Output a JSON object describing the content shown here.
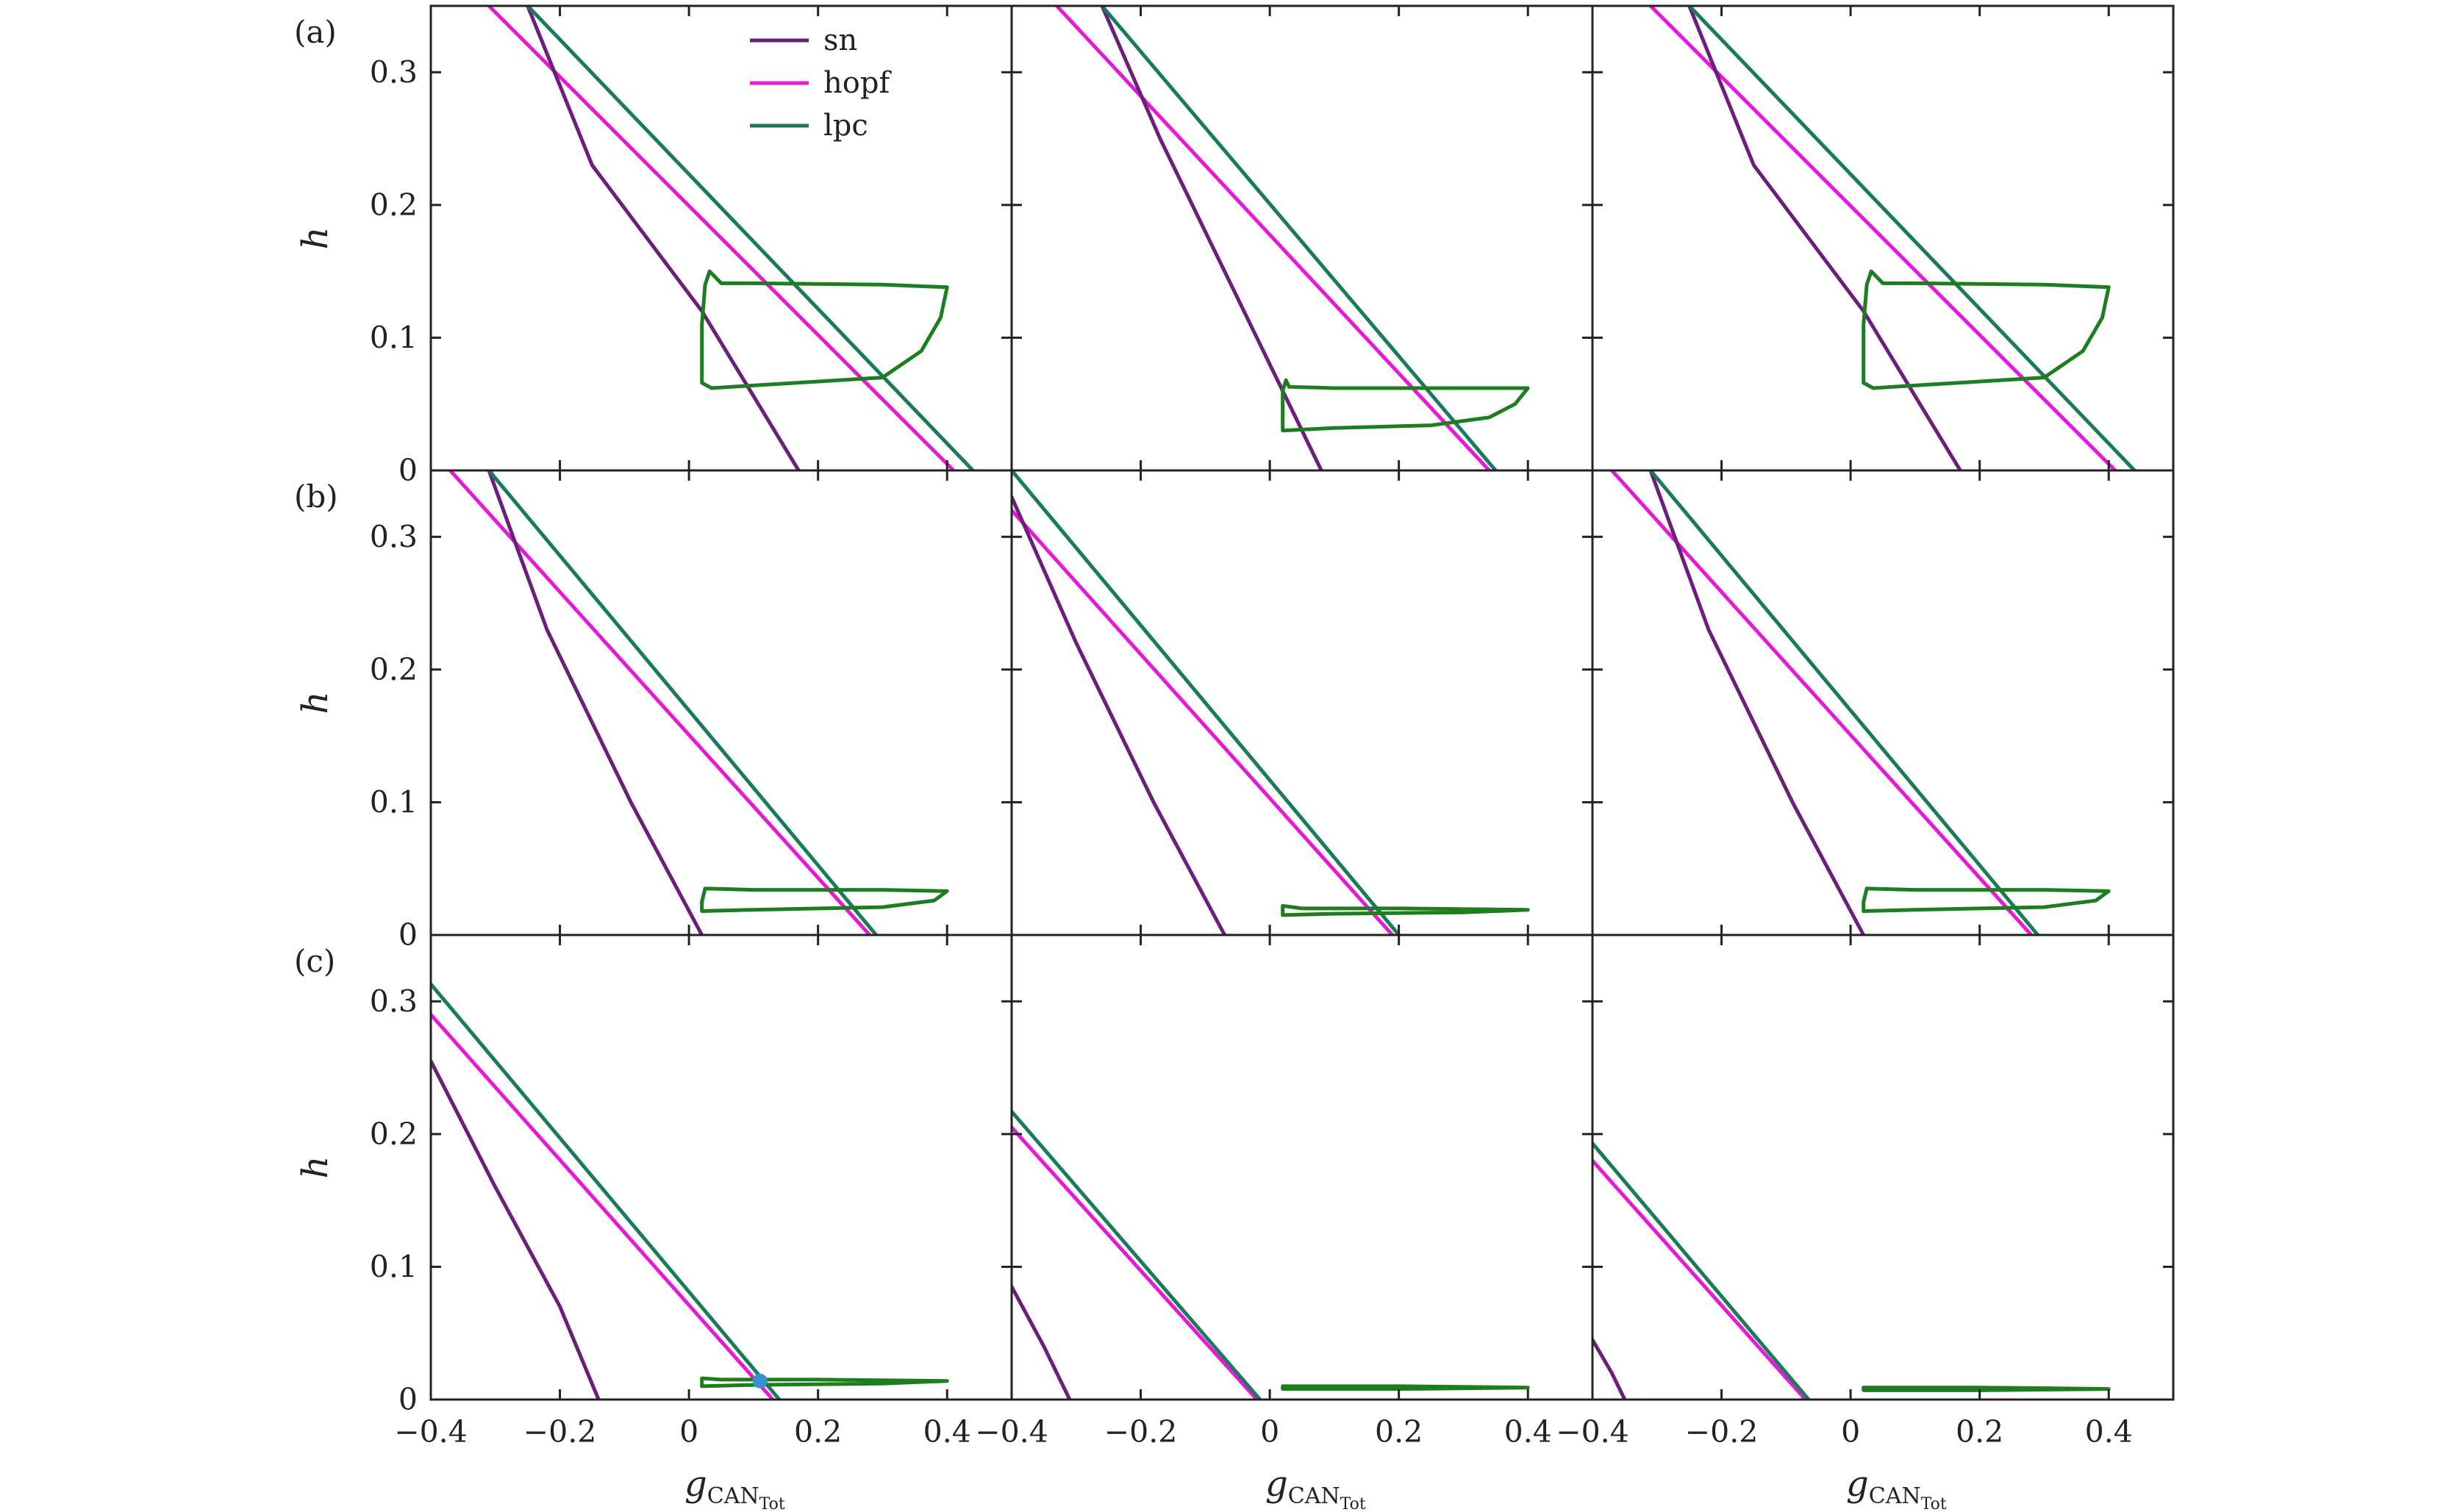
{
  "figure": {
    "row_labels": [
      "(a)",
      "(b)",
      "(c)"
    ],
    "ylabel": "h",
    "xlabel_main": "g",
    "xlabel_sub": "CAN",
    "xlabel_subsub": "Tot"
  },
  "chart_data": {
    "type": "line",
    "layout": "3x3 grid",
    "xlim": [
      -0.4,
      0.5
    ],
    "ylim": [
      0,
      0.35
    ],
    "xticks": [
      -0.4,
      -0.2,
      0,
      0.2,
      0.4
    ],
    "xtick_labels": [
      "−0.4",
      "−0.2",
      "0",
      "0.2",
      "0.4"
    ],
    "yticks": [
      0,
      0.1,
      0.2,
      0.3
    ],
    "ytick_labels": [
      "0",
      "0.1",
      "0.2",
      "0.3"
    ],
    "legend": {
      "placement": "top-left panel, upper center",
      "entries": [
        {
          "label": "sn",
          "color": "#6b1f7a"
        },
        {
          "label": "hopf",
          "color": "#e619d6"
        },
        {
          "label": "lpc",
          "color": "#1a7a5c"
        }
      ]
    },
    "colors": {
      "sn": "#6b1f7a",
      "hopf": "#e619d6",
      "lpc": "#1a7a5c",
      "cycle": "#1e7d1e",
      "dot": "#3a8fd0"
    },
    "panels": [
      {
        "row": "(a)",
        "col": 1,
        "sn": [
          [
            -0.25,
            0.35
          ],
          [
            -0.15,
            0.23
          ],
          [
            0.02,
            0.12
          ],
          [
            0.17,
            0.0
          ]
        ],
        "hopf": [
          [
            -0.31,
            0.35
          ],
          [
            0.41,
            0.0
          ]
        ],
        "lpc": [
          [
            -0.25,
            0.35
          ],
          [
            0.44,
            0.0
          ]
        ],
        "cycle": [
          [
            0.02,
            0.066
          ],
          [
            0.035,
            0.062
          ],
          [
            0.1,
            0.064
          ],
          [
            0.3,
            0.07
          ],
          [
            0.36,
            0.09
          ],
          [
            0.39,
            0.115
          ],
          [
            0.4,
            0.138
          ],
          [
            0.3,
            0.14
          ],
          [
            0.1,
            0.141
          ],
          [
            0.05,
            0.141
          ],
          [
            0.032,
            0.15
          ],
          [
            0.025,
            0.14
          ],
          [
            0.02,
            0.11
          ],
          [
            0.02,
            0.066
          ]
        ]
      },
      {
        "row": "(a)",
        "col": 2,
        "sn": [
          [
            -0.26,
            0.35
          ],
          [
            -0.17,
            0.25
          ],
          [
            -0.05,
            0.13
          ],
          [
            0.08,
            0.0
          ]
        ],
        "hopf": [
          [
            -0.33,
            0.35
          ],
          [
            0.34,
            0.0
          ]
        ],
        "lpc": [
          [
            -0.26,
            0.35
          ],
          [
            0.35,
            0.0
          ]
        ],
        "cycle": [
          [
            0.02,
            0.03
          ],
          [
            0.1,
            0.032
          ],
          [
            0.25,
            0.034
          ],
          [
            0.34,
            0.04
          ],
          [
            0.38,
            0.05
          ],
          [
            0.4,
            0.062
          ],
          [
            0.25,
            0.062
          ],
          [
            0.1,
            0.062
          ],
          [
            0.03,
            0.063
          ],
          [
            0.025,
            0.068
          ],
          [
            0.02,
            0.06
          ],
          [
            0.02,
            0.03
          ]
        ]
      },
      {
        "row": "(a)",
        "col": 3,
        "sn": [
          [
            -0.25,
            0.35
          ],
          [
            -0.15,
            0.23
          ],
          [
            0.02,
            0.12
          ],
          [
            0.17,
            0.0
          ]
        ],
        "hopf": [
          [
            -0.31,
            0.35
          ],
          [
            0.41,
            0.0
          ]
        ],
        "lpc": [
          [
            -0.25,
            0.35
          ],
          [
            0.44,
            0.0
          ]
        ],
        "cycle": [
          [
            0.02,
            0.066
          ],
          [
            0.035,
            0.062
          ],
          [
            0.1,
            0.064
          ],
          [
            0.3,
            0.07
          ],
          [
            0.36,
            0.09
          ],
          [
            0.39,
            0.115
          ],
          [
            0.4,
            0.138
          ],
          [
            0.3,
            0.14
          ],
          [
            0.1,
            0.141
          ],
          [
            0.05,
            0.141
          ],
          [
            0.032,
            0.15
          ],
          [
            0.025,
            0.14
          ],
          [
            0.02,
            0.11
          ],
          [
            0.02,
            0.066
          ]
        ]
      },
      {
        "row": "(b)",
        "col": 1,
        "sn": [
          [
            -0.31,
            0.35
          ],
          [
            -0.22,
            0.23
          ],
          [
            -0.09,
            0.1
          ],
          [
            0.02,
            0.0
          ]
        ],
        "hopf": [
          [
            -0.37,
            0.35
          ],
          [
            0.28,
            0.0
          ]
        ],
        "lpc": [
          [
            -0.31,
            0.35
          ],
          [
            0.29,
            0.0
          ]
        ],
        "cycle": [
          [
            0.02,
            0.018
          ],
          [
            0.1,
            0.019
          ],
          [
            0.3,
            0.021
          ],
          [
            0.38,
            0.026
          ],
          [
            0.4,
            0.033
          ],
          [
            0.3,
            0.034
          ],
          [
            0.1,
            0.034
          ],
          [
            0.025,
            0.035
          ],
          [
            0.02,
            0.025
          ],
          [
            0.02,
            0.018
          ]
        ]
      },
      {
        "row": "(b)",
        "col": 2,
        "sn": [
          [
            -0.4,
            0.33
          ],
          [
            -0.3,
            0.22
          ],
          [
            -0.18,
            0.1
          ],
          [
            -0.07,
            0.0
          ]
        ],
        "hopf": [
          [
            -0.4,
            0.32
          ],
          [
            0.19,
            0.0
          ]
        ],
        "lpc": [
          [
            -0.4,
            0.35
          ],
          [
            0.2,
            0.0
          ]
        ],
        "cycle": [
          [
            0.02,
            0.015
          ],
          [
            0.1,
            0.016
          ],
          [
            0.3,
            0.017
          ],
          [
            0.4,
            0.019
          ],
          [
            0.2,
            0.02
          ],
          [
            0.05,
            0.02
          ],
          [
            0.02,
            0.022
          ],
          [
            0.02,
            0.015
          ]
        ]
      },
      {
        "row": "(b)",
        "col": 3,
        "sn": [
          [
            -0.31,
            0.35
          ],
          [
            -0.22,
            0.23
          ],
          [
            -0.09,
            0.1
          ],
          [
            0.02,
            0.0
          ]
        ],
        "hopf": [
          [
            -0.37,
            0.35
          ],
          [
            0.28,
            0.0
          ]
        ],
        "lpc": [
          [
            -0.31,
            0.35
          ],
          [
            0.29,
            0.0
          ]
        ],
        "cycle": [
          [
            0.02,
            0.018
          ],
          [
            0.1,
            0.019
          ],
          [
            0.3,
            0.021
          ],
          [
            0.38,
            0.026
          ],
          [
            0.4,
            0.033
          ],
          [
            0.3,
            0.034
          ],
          [
            0.1,
            0.034
          ],
          [
            0.025,
            0.035
          ],
          [
            0.02,
            0.025
          ],
          [
            0.02,
            0.018
          ]
        ]
      },
      {
        "row": "(c)",
        "col": 1,
        "sn": [
          [
            -0.4,
            0.255
          ],
          [
            -0.3,
            0.16
          ],
          [
            -0.2,
            0.07
          ],
          [
            -0.14,
            0.0
          ]
        ],
        "hopf": [
          [
            -0.4,
            0.29
          ],
          [
            0.13,
            0.0
          ]
        ],
        "lpc": [
          [
            -0.4,
            0.313
          ],
          [
            0.14,
            0.0
          ]
        ],
        "cycle": [
          [
            0.02,
            0.01
          ],
          [
            0.1,
            0.011
          ],
          [
            0.3,
            0.012
          ],
          [
            0.4,
            0.014
          ],
          [
            0.2,
            0.015
          ],
          [
            0.05,
            0.015
          ],
          [
            0.02,
            0.016
          ],
          [
            0.02,
            0.01
          ]
        ],
        "dot": [
          0.11,
          0.014
        ]
      },
      {
        "row": "(c)",
        "col": 2,
        "sn": [
          [
            -0.4,
            0.085
          ],
          [
            -0.35,
            0.04
          ],
          [
            -0.31,
            0.0
          ]
        ],
        "hopf": [
          [
            -0.4,
            0.205
          ],
          [
            -0.02,
            0.0
          ]
        ],
        "lpc": [
          [
            -0.4,
            0.217
          ],
          [
            -0.015,
            0.0
          ]
        ],
        "cycle": [
          [
            0.02,
            0.008
          ],
          [
            0.2,
            0.008
          ],
          [
            0.4,
            0.009
          ],
          [
            0.2,
            0.01
          ],
          [
            0.02,
            0.01
          ],
          [
            0.02,
            0.008
          ]
        ]
      },
      {
        "row": "(c)",
        "col": 3,
        "sn": [
          [
            -0.4,
            0.045
          ],
          [
            -0.37,
            0.02
          ],
          [
            -0.35,
            0.0
          ]
        ],
        "hopf": [
          [
            -0.4,
            0.18
          ],
          [
            -0.07,
            0.0
          ]
        ],
        "lpc": [
          [
            -0.4,
            0.193
          ],
          [
            -0.065,
            0.0
          ]
        ],
        "cycle": [
          [
            0.02,
            0.007
          ],
          [
            0.2,
            0.007
          ],
          [
            0.4,
            0.008
          ],
          [
            0.2,
            0.009
          ],
          [
            0.02,
            0.009
          ],
          [
            0.02,
            0.007
          ]
        ]
      }
    ]
  }
}
